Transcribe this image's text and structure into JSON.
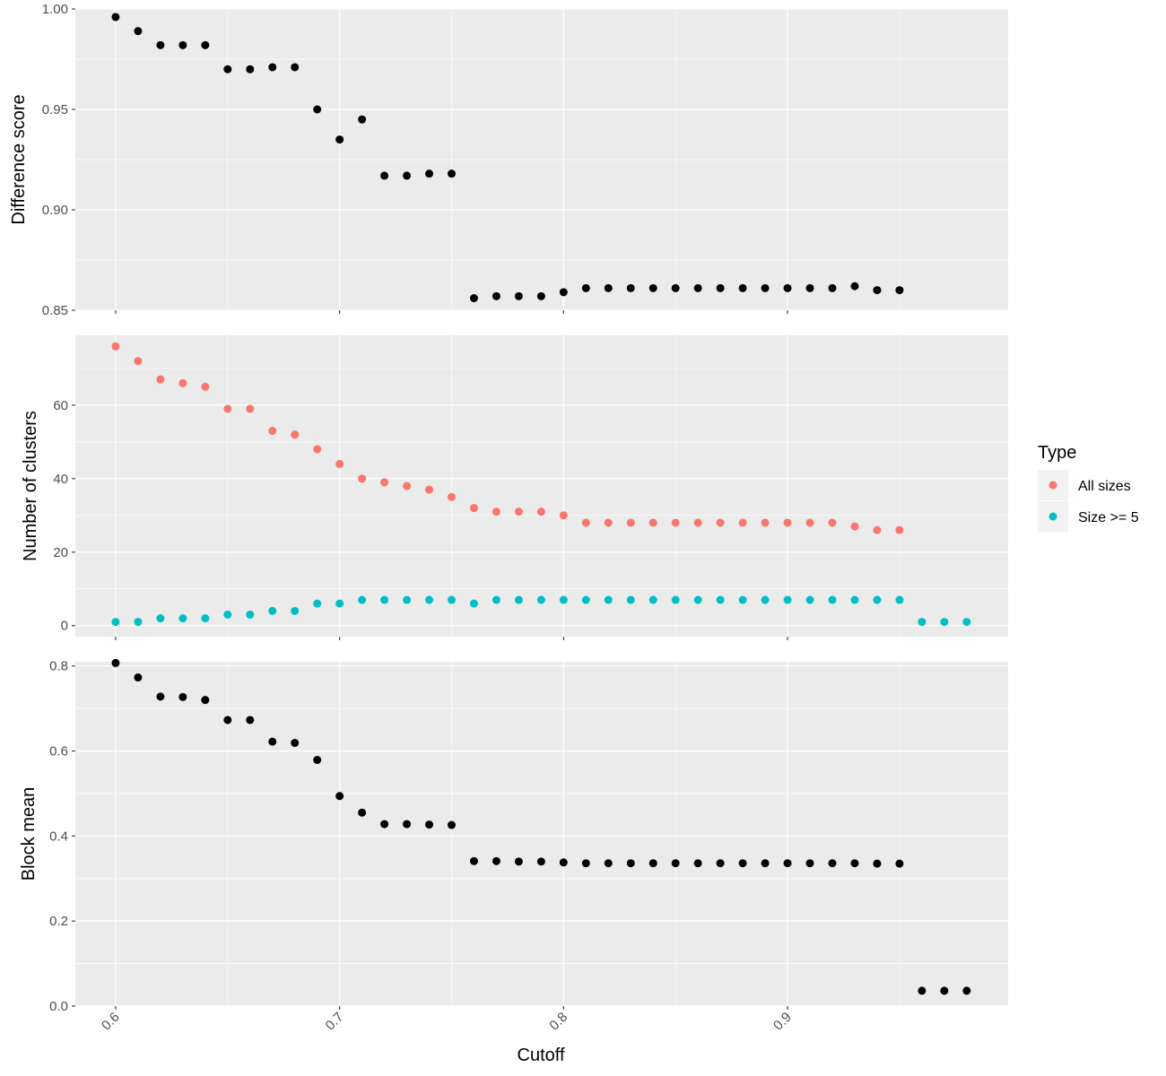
{
  "chart_data": [
    {
      "type": "scatter",
      "ylabel": "Difference score",
      "ylim": [
        0.85,
        1.0
      ],
      "y_ticks": [
        0.85,
        0.9,
        0.95,
        1.0
      ],
      "y_tick_labels": [
        "0.85",
        "0.90",
        "0.95",
        "1.00"
      ],
      "grid": true,
      "series": [
        {
          "color": "#000000",
          "x": [
            0.6,
            0.61,
            0.62,
            0.63,
            0.64,
            0.65,
            0.66,
            0.67,
            0.68,
            0.69,
            0.7,
            0.71,
            0.72,
            0.73,
            0.74,
            0.75,
            0.76,
            0.77,
            0.78,
            0.79,
            0.8,
            0.81,
            0.82,
            0.83,
            0.84,
            0.85,
            0.86,
            0.87,
            0.88,
            0.89,
            0.9,
            0.91,
            0.92,
            0.93,
            0.94,
            0.95
          ],
          "y": [
            0.996,
            0.989,
            0.982,
            0.982,
            0.982,
            0.97,
            0.97,
            0.971,
            0.971,
            0.95,
            0.935,
            0.945,
            0.917,
            0.917,
            0.918,
            0.918,
            0.856,
            0.857,
            0.857,
            0.857,
            0.859,
            0.861,
            0.861,
            0.861,
            0.861,
            0.861,
            0.861,
            0.861,
            0.861,
            0.861,
            0.861,
            0.861,
            0.861,
            0.862,
            0.86,
            0.86
          ]
        }
      ]
    },
    {
      "type": "scatter",
      "ylabel": "Number of clusters",
      "ylim": [
        -3,
        79
      ],
      "y_ticks": [
        0,
        20,
        40,
        60
      ],
      "y_tick_labels": [
        "0",
        "20",
        "40",
        "60"
      ],
      "grid": true,
      "legend": {
        "title": "Type",
        "position": "right",
        "entries": [
          "All sizes",
          "Size >= 5"
        ]
      },
      "series": [
        {
          "name": "All sizes",
          "color": "#F8766D",
          "x": [
            0.6,
            0.61,
            0.62,
            0.63,
            0.64,
            0.65,
            0.66,
            0.67,
            0.68,
            0.69,
            0.7,
            0.71,
            0.72,
            0.73,
            0.74,
            0.75,
            0.76,
            0.77,
            0.78,
            0.79,
            0.8,
            0.81,
            0.82,
            0.83,
            0.84,
            0.85,
            0.86,
            0.87,
            0.88,
            0.89,
            0.9,
            0.91,
            0.92,
            0.93,
            0.94,
            0.95
          ],
          "y": [
            76,
            72,
            67,
            66,
            65,
            59,
            59,
            53,
            52,
            48,
            44,
            40,
            39,
            38,
            37,
            35,
            32,
            31,
            31,
            31,
            30,
            28,
            28,
            28,
            28,
            28,
            28,
            28,
            28,
            28,
            28,
            28,
            28,
            27,
            26,
            26
          ]
        },
        {
          "name": "Size >= 5",
          "color": "#00BFC4",
          "x": [
            0.6,
            0.61,
            0.62,
            0.63,
            0.64,
            0.65,
            0.66,
            0.67,
            0.68,
            0.69,
            0.7,
            0.71,
            0.72,
            0.73,
            0.74,
            0.75,
            0.76,
            0.77,
            0.78,
            0.79,
            0.8,
            0.81,
            0.82,
            0.83,
            0.84,
            0.85,
            0.86,
            0.87,
            0.88,
            0.89,
            0.9,
            0.91,
            0.92,
            0.93,
            0.94,
            0.95,
            0.96,
            0.97,
            0.98
          ],
          "y": [
            1,
            1,
            2,
            2,
            2,
            3,
            3,
            4,
            4,
            6,
            6,
            7,
            7,
            7,
            7,
            7,
            6,
            7,
            7,
            7,
            7,
            7,
            7,
            7,
            7,
            7,
            7,
            7,
            7,
            7,
            7,
            7,
            7,
            7,
            7,
            7,
            1,
            1,
            1
          ]
        }
      ]
    },
    {
      "type": "scatter",
      "xlabel": "Cutoff",
      "ylabel": "Block mean",
      "ylim": [
        0.0,
        0.81
      ],
      "y_ticks": [
        0.0,
        0.2,
        0.4,
        0.6,
        0.8
      ],
      "y_tick_labels": [
        "0.0",
        "0.2",
        "0.4",
        "0.6",
        "0.8"
      ],
      "x_ticks": [
        0.6,
        0.7,
        0.8,
        0.9
      ],
      "x_tick_labels": [
        "0.6",
        "0.7",
        "0.8",
        "0.9"
      ],
      "grid": true,
      "series": [
        {
          "color": "#000000",
          "x": [
            0.6,
            0.61,
            0.62,
            0.63,
            0.64,
            0.65,
            0.66,
            0.67,
            0.68,
            0.69,
            0.7,
            0.71,
            0.72,
            0.73,
            0.74,
            0.75,
            0.76,
            0.77,
            0.78,
            0.79,
            0.8,
            0.81,
            0.82,
            0.83,
            0.84,
            0.85,
            0.86,
            0.87,
            0.88,
            0.89,
            0.9,
            0.91,
            0.92,
            0.93,
            0.94,
            0.95,
            0.96,
            0.97,
            0.98
          ],
          "y": [
            0.807,
            0.773,
            0.728,
            0.727,
            0.72,
            0.673,
            0.673,
            0.622,
            0.619,
            0.579,
            0.494,
            0.455,
            0.428,
            0.428,
            0.427,
            0.426,
            0.341,
            0.341,
            0.34,
            0.34,
            0.338,
            0.336,
            0.336,
            0.336,
            0.336,
            0.336,
            0.336,
            0.336,
            0.336,
            0.336,
            0.336,
            0.336,
            0.336,
            0.336,
            0.335,
            0.335,
            0.036,
            0.036,
            0.036
          ]
        }
      ]
    }
  ],
  "shared_x": {
    "xlim": [
      0.582,
      0.9985
    ],
    "ticks": [
      0.6,
      0.7,
      0.8,
      0.9
    ]
  }
}
